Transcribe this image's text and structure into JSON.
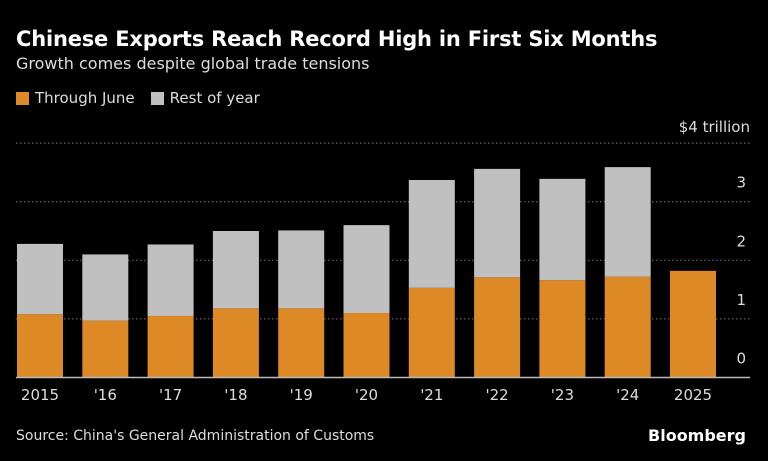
{
  "title": "Chinese Exports Reach Record High in First Six Months",
  "subtitle": "Growth comes despite global trade tensions",
  "source": "Source: China's General Administration of Customs",
  "brand": "Bloomberg",
  "colors": {
    "through_june": "#dd8a26",
    "rest_of_year": "#c0c0c0",
    "background": "#000000",
    "gridline": "#777777"
  },
  "chart_data": {
    "type": "bar",
    "stacked": true,
    "categories": [
      "2015",
      "'16",
      "'17",
      "'18",
      "'19",
      "'20",
      "'21",
      "'22",
      "'23",
      "'24",
      "2025"
    ],
    "series": [
      {
        "name": "Through June",
        "values": [
          1.08,
          0.97,
          1.05,
          1.18,
          1.18,
          1.1,
          1.53,
          1.71,
          1.66,
          1.72,
          1.82
        ]
      },
      {
        "name": "Rest of year",
        "values": [
          1.2,
          1.13,
          1.22,
          1.32,
          1.33,
          1.5,
          1.84,
          1.85,
          1.73,
          1.87,
          null
        ]
      }
    ],
    "ylim": [
      0,
      4
    ],
    "yticks": [
      "0",
      "1",
      "2",
      "3",
      "$4 trillion"
    ],
    "ytick_values": [
      0,
      1,
      2,
      3,
      4
    ],
    "grid": true,
    "legend_position": "top-left",
    "y_axis_side": "right"
  }
}
